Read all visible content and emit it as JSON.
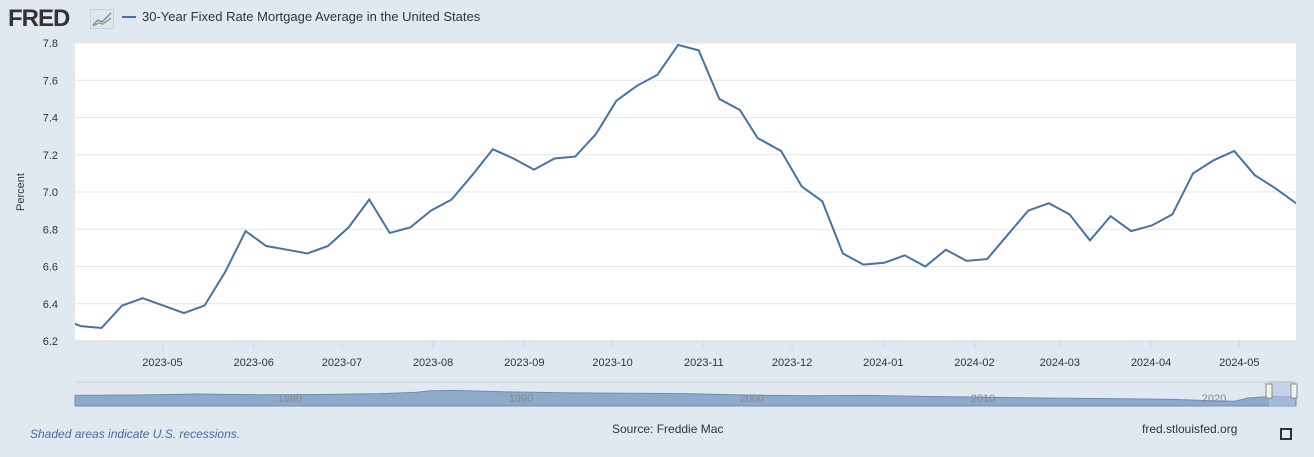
{
  "header": {
    "logo": "FRED",
    "legend_label": "30-Year Fixed Rate Mortgage Average in the United States"
  },
  "footer": {
    "recession_note": "Shaded areas indicate U.S. recessions.",
    "source": "Source: Freddie Mac",
    "site": "fred.stlouisfed.org"
  },
  "colors": {
    "line": "#4572a7",
    "background": "#e1e9f0",
    "navigator_fill": "#8fa9c8"
  },
  "navigator": {
    "labels": [
      "1980",
      "1990",
      "2000",
      "2010",
      "2020"
    ]
  },
  "chart_data": {
    "type": "line",
    "title": "30-Year Fixed Rate Mortgage Average in the United States",
    "xlabel": "",
    "ylabel": "Percent",
    "ylim": [
      6.2,
      7.8
    ],
    "xlim": [
      "2023-04-04",
      "2024-05-23"
    ],
    "yticks": [
      "6.2",
      "6.4",
      "6.6",
      "6.8",
      "7.0",
      "7.2",
      "7.4",
      "7.6",
      "7.8"
    ],
    "xticks": [
      "2023-05",
      "2023-06",
      "2023-07",
      "2023-08",
      "2023-09",
      "2023-10",
      "2023-11",
      "2023-12",
      "2024-01",
      "2024-02",
      "2024-03",
      "2024-04",
      "2024-05"
    ],
    "grid": true,
    "series": [
      {
        "name": "30-Year Fixed Rate Mortgage Average in the United States",
        "x": [
          "2023-03-30",
          "2023-04-06",
          "2023-04-13",
          "2023-04-20",
          "2023-04-27",
          "2023-05-04",
          "2023-05-11",
          "2023-05-18",
          "2023-05-25",
          "2023-06-01",
          "2023-06-08",
          "2023-06-15",
          "2023-06-22",
          "2023-06-29",
          "2023-07-06",
          "2023-07-13",
          "2023-07-20",
          "2023-07-27",
          "2023-08-03",
          "2023-08-10",
          "2023-08-17",
          "2023-08-24",
          "2023-08-31",
          "2023-09-07",
          "2023-09-14",
          "2023-09-21",
          "2023-09-28",
          "2023-10-05",
          "2023-10-12",
          "2023-10-19",
          "2023-10-26",
          "2023-11-02",
          "2023-11-09",
          "2023-11-16",
          "2023-11-22",
          "2023-11-30",
          "2023-12-07",
          "2023-12-14",
          "2023-12-21",
          "2023-12-28",
          "2024-01-04",
          "2024-01-11",
          "2024-01-18",
          "2024-01-25",
          "2024-02-01",
          "2024-02-08",
          "2024-02-15",
          "2024-02-22",
          "2024-02-29",
          "2024-03-07",
          "2024-03-14",
          "2024-03-21",
          "2024-03-28",
          "2024-04-04",
          "2024-04-11",
          "2024-04-18",
          "2024-04-25",
          "2024-05-02",
          "2024-05-09",
          "2024-05-16",
          "2024-05-23"
        ],
        "values": [
          6.32,
          6.28,
          6.27,
          6.39,
          6.43,
          6.39,
          6.35,
          6.39,
          6.57,
          6.79,
          6.71,
          6.69,
          6.67,
          6.71,
          6.81,
          6.96,
          6.78,
          6.81,
          6.9,
          6.96,
          7.09,
          7.23,
          7.18,
          7.12,
          7.18,
          7.19,
          7.31,
          7.49,
          7.57,
          7.63,
          7.79,
          7.76,
          7.5,
          7.44,
          7.29,
          7.22,
          7.03,
          6.95,
          6.67,
          6.61,
          6.62,
          6.66,
          6.6,
          6.69,
          6.63,
          6.64,
          6.77,
          6.9,
          6.94,
          6.88,
          6.74,
          6.87,
          6.79,
          6.82,
          6.88,
          7.1,
          7.17,
          7.22,
          7.09,
          7.02,
          6.94
        ]
      }
    ]
  }
}
